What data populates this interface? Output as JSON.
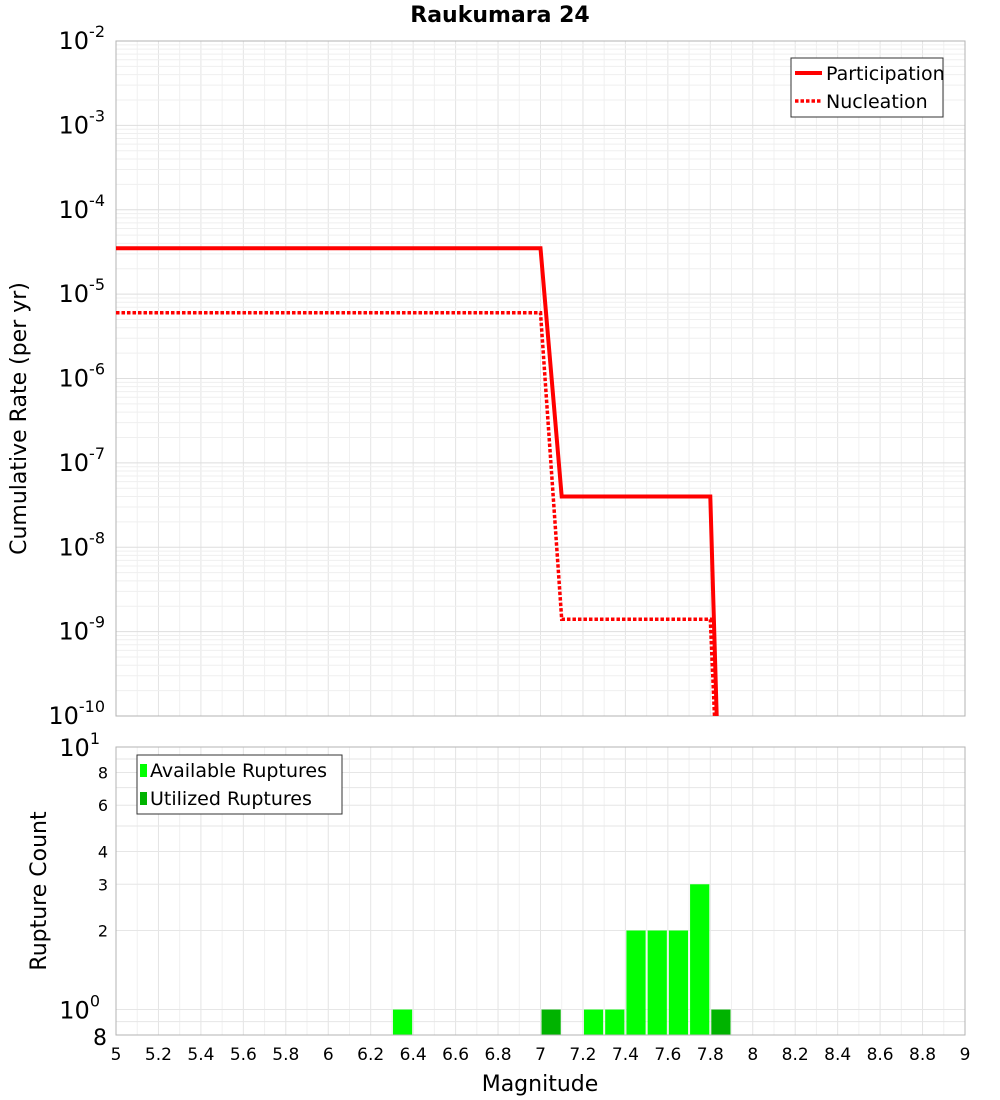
{
  "chart_data": [
    {
      "type": "line",
      "title": "Raukumara 24",
      "xlabel": "",
      "ylabel": "Cumulative Rate (per yr)",
      "y_scale": "log",
      "xlim": [
        5,
        9
      ],
      "ylim": [
        1e-10,
        0.01
      ],
      "y_tick_labels": [
        {
          "base": "10",
          "exp": "-2"
        },
        {
          "base": "10",
          "exp": "-3"
        },
        {
          "base": "10",
          "exp": "-4"
        },
        {
          "base": "10",
          "exp": "-5"
        },
        {
          "base": "10",
          "exp": "-6"
        },
        {
          "base": "10",
          "exp": "-7"
        },
        {
          "base": "10",
          "exp": "-8"
        },
        {
          "base": "10",
          "exp": "-9"
        },
        {
          "base": "10",
          "exp": "-10"
        }
      ],
      "grid": true,
      "legend_position": "top-right",
      "series": [
        {
          "name": "Participation",
          "color": "#ff0000",
          "style": "solid",
          "x": [
            5.0,
            7.0,
            7.1,
            7.8,
            7.83
          ],
          "y": [
            3.5e-05,
            3.5e-05,
            4e-08,
            4e-08,
            1e-10
          ]
        },
        {
          "name": "Nucleation",
          "color": "#ff0000",
          "style": "dotted",
          "x": [
            5.0,
            7.0,
            7.1,
            7.8,
            7.82
          ],
          "y": [
            6e-06,
            6e-06,
            1.4e-09,
            1.4e-09,
            1e-10
          ]
        }
      ]
    },
    {
      "type": "bar",
      "title": "",
      "xlabel": "Magnitude",
      "ylabel": "Rupture Count",
      "y_scale": "log",
      "xlim": [
        5,
        9
      ],
      "ylim": [
        0.8,
        10
      ],
      "x_ticks": [
        "5",
        "5.2",
        "5.4",
        "5.6",
        "5.8",
        "6",
        "6.2",
        "6.4",
        "6.6",
        "6.8",
        "7",
        "7.2",
        "7.4",
        "7.6",
        "7.8",
        "8",
        "8.2",
        "8.4",
        "8.6",
        "8.8",
        "9"
      ],
      "y_ticks": [
        {
          "value": 1,
          "label": "10",
          "exp": "0"
        },
        {
          "value": 2,
          "label": "2",
          "exp": ""
        },
        {
          "value": 3,
          "label": "3",
          "exp": ""
        },
        {
          "value": 4,
          "label": "4",
          "exp": ""
        },
        {
          "value": 6,
          "label": "6",
          "exp": ""
        },
        {
          "value": 8,
          "label": "8",
          "exp": ""
        },
        {
          "value": 10,
          "label": "10",
          "exp": "1"
        }
      ],
      "y_bottom_label": "8",
      "grid": true,
      "legend_position": "top-left",
      "bin_width": 0.1,
      "series": [
        {
          "name": "Available Ruptures",
          "color": "#00ff00",
          "x": [
            6.35,
            7.25,
            7.35,
            7.45,
            7.55,
            7.65,
            7.75
          ],
          "values": [
            1,
            1,
            1,
            2,
            2,
            2,
            3
          ]
        },
        {
          "name": "Utilized Ruptures",
          "color": "#00b300",
          "x": [
            7.05,
            7.85
          ],
          "values": [
            1,
            1
          ]
        }
      ]
    }
  ]
}
